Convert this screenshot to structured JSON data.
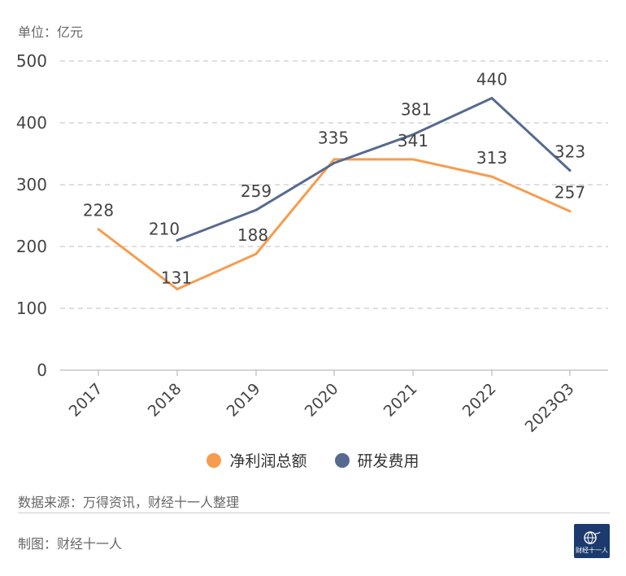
{
  "unit_label": "单位：亿元",
  "source": "数据来源：万得资讯，财经十一人整理",
  "made_by": "制图：财经十一人",
  "logo": {
    "text": "财经十一人",
    "icon": "globe-icon"
  },
  "colors": {
    "net_profit": "#F79C4E",
    "rd_expense": "#566A8F",
    "grid": "#cccccc",
    "axis": "#bbbbbb"
  },
  "chart_data": {
    "type": "line",
    "categories": [
      "2017",
      "2018",
      "2019",
      "2020",
      "2021",
      "2022",
      "2023Q3"
    ],
    "ylim": [
      0,
      500
    ],
    "yticks": [
      0,
      100,
      200,
      300,
      400,
      500
    ],
    "grid": true,
    "legend_position": "bottom",
    "series": [
      {
        "name": "净利润总额",
        "color": "#F79C4E",
        "values": [
          228,
          131,
          188,
          341,
          341,
          313,
          257
        ]
      },
      {
        "name": "研发费用",
        "color": "#566A8F",
        "values": [
          null,
          210,
          259,
          335,
          381,
          440,
          323
        ]
      }
    ],
    "data_labels": [
      {
        "category": "2017",
        "text": "228"
      },
      {
        "category": "2018",
        "text": "131"
      },
      {
        "category": "2018",
        "text": "210"
      },
      {
        "category": "2019",
        "text": "188"
      },
      {
        "category": "2019",
        "text": "259"
      },
      {
        "category": "2020",
        "text": "335"
      },
      {
        "category": "2021",
        "text": "381"
      },
      {
        "category": "2021",
        "text": "341"
      },
      {
        "category": "2022",
        "text": "440"
      },
      {
        "category": "2022",
        "text": "313"
      },
      {
        "category": "2023Q3",
        "text": "323"
      },
      {
        "category": "2023Q3",
        "text": "257"
      }
    ]
  }
}
